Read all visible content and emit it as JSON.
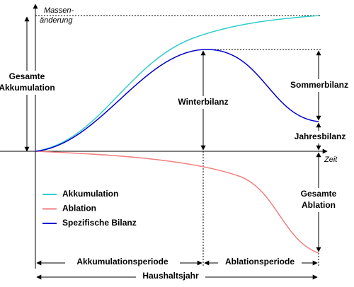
{
  "axes": {
    "y_label_line1": "Massen-",
    "y_label_line2": "änderung",
    "x_label": "Zeit"
  },
  "labels": {
    "total_accumulation_line1": "Gesamte",
    "total_accumulation_line2": "Akkumulation",
    "winter_balance": "Winterbilanz",
    "summer_balance": "Sommerbilanz",
    "annual_balance": "Jahresbilanz",
    "total_ablation_line1": "Gesamte",
    "total_ablation_line2": "Ablation",
    "accumulation_period": "Akkumulationsperiode",
    "ablation_period": "Ablationsperiode",
    "budget_year": "Haushaltsjahr"
  },
  "legend": [
    {
      "name": "Akkumulation",
      "color": "#33cccc"
    },
    {
      "name": "Ablation",
      "color": "#f08080"
    },
    {
      "name": "Spezifische Bilanz",
      "color": "#0000cc"
    }
  ]
}
